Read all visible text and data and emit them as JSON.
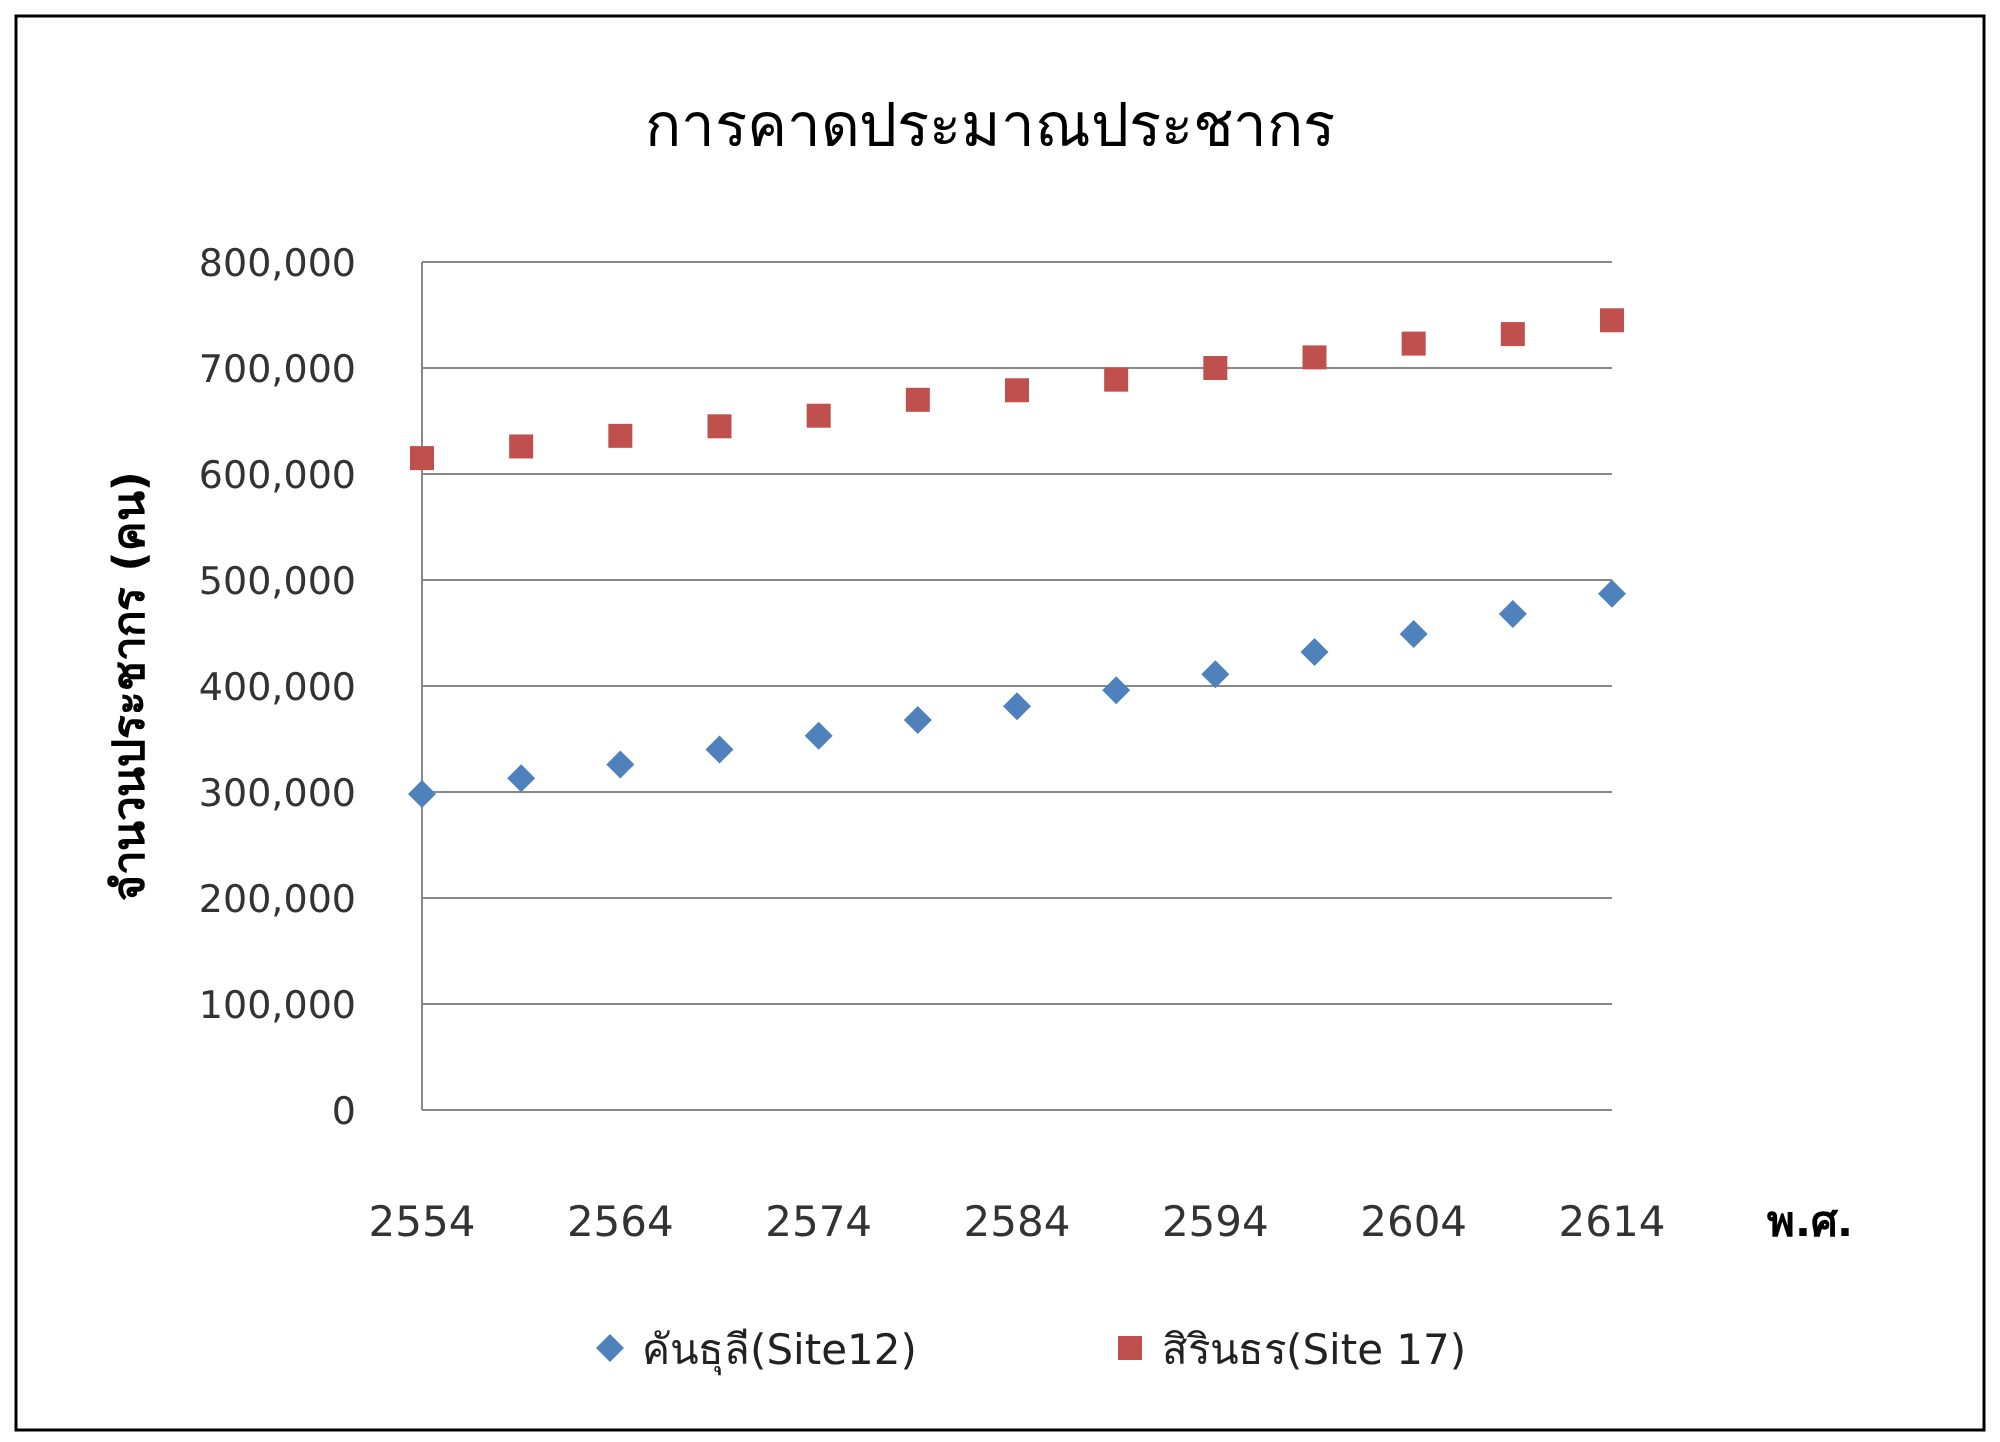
{
  "chart_data": {
    "type": "scatter",
    "title": "การคาดประมาณประชากร",
    "xlabel": "พ.ศ.",
    "ylabel": "จำนวนประชากร (คน)",
    "x": [
      2554,
      2559,
      2564,
      2569,
      2574,
      2579,
      2584,
      2589,
      2594,
      2599,
      2604,
      2609,
      2614
    ],
    "series": [
      {
        "name": "คันธุลี(Site12)",
        "color": "#4f81bd",
        "marker": "diamond",
        "values": [
          298000,
          313000,
          326000,
          340000,
          353000,
          368000,
          381000,
          396000,
          411000,
          432000,
          449000,
          468000,
          487000
        ]
      },
      {
        "name": "สิรินธร(Site 17)",
        "color": "#c0504d",
        "marker": "square",
        "values": [
          615000,
          626000,
          636000,
          645000,
          655000,
          670000,
          679000,
          689000,
          700000,
          710000,
          723000,
          732000,
          745000
        ]
      }
    ],
    "xlim": [
      2554,
      2614
    ],
    "xticks": [
      2554,
      2564,
      2574,
      2584,
      2594,
      2604,
      2614
    ],
    "ylim": [
      0,
      800000
    ],
    "yticks": [
      0,
      {
        "value": 100000,
        "label": "100,000"
      },
      {
        "value": 200000,
        "label": "200,000"
      },
      {
        "value": 300000,
        "label": "300,000"
      },
      {
        "value": 400000,
        "label": "400,000"
      },
      {
        "value": 500000,
        "label": "500,000"
      },
      {
        "value": 600000,
        "label": "600,000"
      },
      {
        "value": 700000,
        "label": "700,000"
      },
      {
        "value": 800000,
        "label": "800,000"
      }
    ],
    "grid": "y",
    "legend": "bottom"
  }
}
